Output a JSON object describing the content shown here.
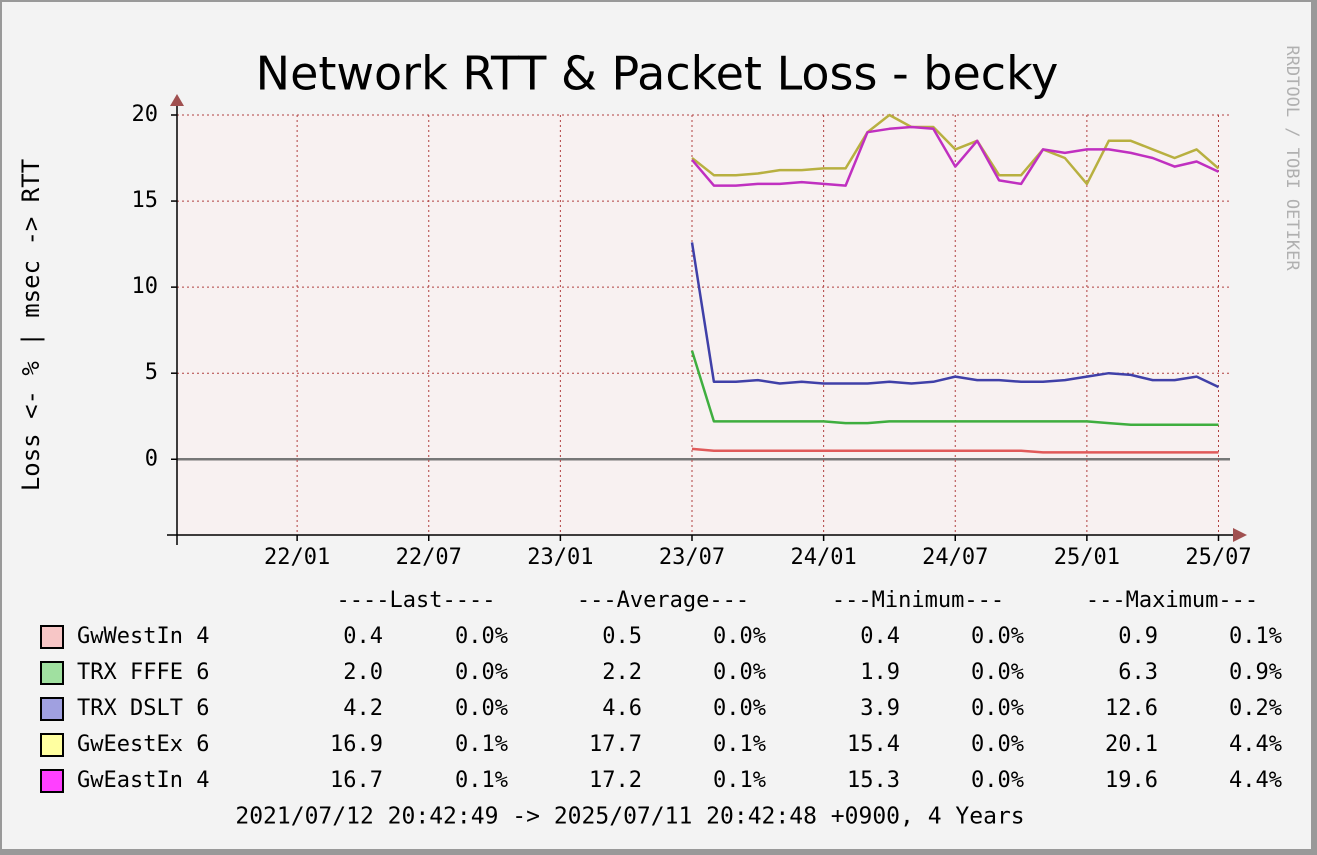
{
  "chart_data": {
    "type": "line",
    "title": "Network RTT & Packet Loss - becky",
    "y_label": "Loss <- % | msec -> RTT",
    "watermark": "RRDTOOL / TOBI OETIKER",
    "x": [
      "23/07",
      "23/08",
      "23/09",
      "23/10",
      "23/11",
      "23/12",
      "24/01",
      "24/02",
      "24/03",
      "24/04",
      "24/05",
      "24/06",
      "24/07",
      "24/08",
      "24/09",
      "24/10",
      "24/11",
      "24/12",
      "25/01",
      "25/02",
      "25/03",
      "25/04",
      "25/05",
      "25/06",
      "25/07"
    ],
    "xlim": [
      "21/07",
      "25/07"
    ],
    "xticks": [
      "22/01",
      "22/07",
      "23/01",
      "23/07",
      "24/01",
      "24/07",
      "25/01",
      "25/07"
    ],
    "ylim": [
      -4.4,
      20
    ],
    "yticks": [
      0,
      5,
      10,
      15,
      20
    ],
    "grid": true,
    "series": [
      {
        "name": "GwWestIn 4",
        "color": "#e05a5a",
        "swatch": "#f7c6c6",
        "values": [
          0.6,
          0.5,
          0.5,
          0.5,
          0.5,
          0.5,
          0.5,
          0.5,
          0.5,
          0.5,
          0.5,
          0.5,
          0.5,
          0.5,
          0.5,
          0.5,
          0.4,
          0.4,
          0.4,
          0.4,
          0.4,
          0.4,
          0.4,
          0.4,
          0.4
        ]
      },
      {
        "name": "TRX FFFE 6",
        "color": "#3fae3f",
        "swatch": "#a0e0a0",
        "values": [
          6.3,
          2.2,
          2.2,
          2.2,
          2.2,
          2.2,
          2.2,
          2.1,
          2.1,
          2.2,
          2.2,
          2.2,
          2.2,
          2.2,
          2.2,
          2.2,
          2.2,
          2.2,
          2.2,
          2.1,
          2.0,
          2.0,
          2.0,
          2.0,
          2.0
        ]
      },
      {
        "name": "TRX DSLT 6",
        "color": "#4040a8",
        "swatch": "#a0a0e0",
        "values": [
          12.6,
          4.5,
          4.5,
          4.6,
          4.4,
          4.5,
          4.4,
          4.4,
          4.4,
          4.5,
          4.4,
          4.5,
          4.8,
          4.6,
          4.6,
          4.5,
          4.5,
          4.6,
          4.8,
          5.0,
          4.9,
          4.6,
          4.6,
          4.8,
          4.2
        ]
      },
      {
        "name": "GwEestEx 6",
        "color": "#b8b040",
        "swatch": "#ffffa0",
        "values": [
          17.5,
          16.5,
          16.5,
          16.6,
          16.8,
          16.8,
          16.9,
          16.9,
          19.0,
          20.0,
          19.3,
          19.3,
          18.0,
          18.5,
          16.5,
          16.5,
          18.0,
          17.5,
          16.0,
          18.5,
          18.5,
          18.0,
          17.5,
          18.0,
          16.9
        ]
      },
      {
        "name": "GwEastIn 4",
        "color": "#c030c0",
        "swatch": "#ff40ff",
        "values": [
          17.4,
          15.9,
          15.9,
          16.0,
          16.0,
          16.1,
          16.0,
          15.9,
          19.0,
          19.2,
          19.3,
          19.2,
          17.0,
          18.5,
          16.2,
          16.0,
          18.0,
          17.8,
          18.0,
          18.0,
          17.8,
          17.5,
          17.0,
          17.3,
          16.7
        ]
      }
    ],
    "legend_table": {
      "headers": [
        "----Last----",
        "---Average---",
        "---Minimum---",
        "---Maximum---"
      ],
      "rows": [
        [
          "0.4",
          "0.0%",
          "0.5",
          "0.0%",
          "0.4",
          "0.0%",
          "0.9",
          "0.1%"
        ],
        [
          "2.0",
          "0.0%",
          "2.2",
          "0.0%",
          "1.9",
          "0.0%",
          "6.3",
          "0.9%"
        ],
        [
          "4.2",
          "0.0%",
          "4.6",
          "0.0%",
          "3.9",
          "0.0%",
          "12.6",
          "0.2%"
        ],
        [
          "16.9",
          "0.1%",
          "17.7",
          "0.1%",
          "15.4",
          "0.0%",
          "20.1",
          "4.4%"
        ],
        [
          "16.7",
          "0.1%",
          "17.2",
          "0.1%",
          "15.3",
          "0.0%",
          "19.6",
          "4.4%"
        ]
      ]
    },
    "footer": "2021/07/12 20:42:49 -> 2025/07/11 20:42:48 +0900, 4 Years"
  }
}
